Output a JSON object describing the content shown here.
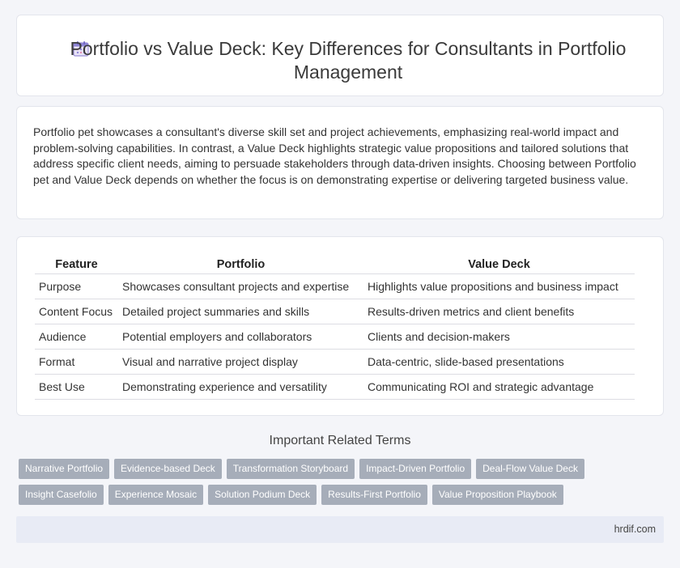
{
  "header": {
    "title": "Portfolio vs Value Deck: Key Differences for Consultants in Portfolio Management",
    "icon": "calendar-icon"
  },
  "intro": {
    "text": "Portfolio pet showcases a consultant's diverse skill set and project achievements, emphasizing real-world impact and problem-solving capabilities. In contrast, a Value Deck highlights strategic value propositions and tailored solutions that address specific client needs, aiming to persuade stakeholders through data-driven insights. Choosing between Portfolio pet and Value Deck depends on whether the focus is on demonstrating expertise or delivering targeted business value."
  },
  "table": {
    "headers": [
      "Feature",
      "Portfolio",
      "Value Deck"
    ],
    "rows": [
      [
        "Purpose",
        "Showcases consultant projects and expertise",
        "Highlights value propositions and business impact"
      ],
      [
        "Content Focus",
        "Detailed project summaries and skills",
        "Results-driven metrics and client benefits"
      ],
      [
        "Audience",
        "Potential employers and collaborators",
        "Clients and decision-makers"
      ],
      [
        "Format",
        "Visual and narrative project display",
        "Data-centric, slide-based presentations"
      ],
      [
        "Best Use",
        "Demonstrating experience and versatility",
        "Communicating ROI and strategic advantage"
      ]
    ]
  },
  "related": {
    "title": "Important Related Terms",
    "rows": [
      [
        "Narrative Portfolio",
        "Evidence-based Deck",
        "Transformation Storyboard",
        "Impact-Driven Portfolio",
        "Deal-Flow Value Deck"
      ],
      [
        "Insight Casefolio",
        "Experience Mosaic",
        "Solution Podium Deck",
        "Results-First Portfolio",
        "Value Proposition Playbook"
      ]
    ]
  },
  "footer": {
    "site": "hrdif.com"
  },
  "colors": {
    "background": "#f4f5f9",
    "card": "#ffffff",
    "tag": "#a6adb9",
    "footer": "#e8ebf5"
  }
}
